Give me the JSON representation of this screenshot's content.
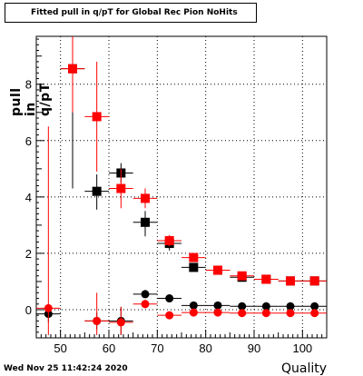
{
  "header": {
    "title": "Fitted pull in q/pT for Global Rec Pion NoHits"
  },
  "footer": {
    "timestamp": "Wed Nov 25 11:42:24 2020"
  },
  "chart_data": {
    "type": "scatter",
    "title": "Fitted pull in q/pT for Global Rec Pion NoHits",
    "xlabel": "Quality",
    "ylabel": "pull in q/pT",
    "xlim": [
      45,
      105
    ],
    "ylim": [
      -1.0,
      9.7
    ],
    "x_ticks": [
      50,
      60,
      70,
      80,
      90,
      100
    ],
    "y_ticks": [
      0,
      2,
      4,
      6,
      8
    ],
    "grid": true,
    "colors": {
      "black": "#000000",
      "red": "#ff0000"
    },
    "series": [
      {
        "marker": "square",
        "color": "#000000",
        "points": [
          {
            "x": 52.5,
            "y": 8.55,
            "ylo": 4.3,
            "yhi": 9.0
          },
          {
            "x": 57.5,
            "y": 4.2,
            "ylo": 3.55,
            "yhi": 4.8
          },
          {
            "x": 62.5,
            "y": 4.85,
            "ylo": 4.5,
            "yhi": 5.2
          },
          {
            "x": 67.5,
            "y": 3.1,
            "ylo": 2.6,
            "yhi": 3.5
          },
          {
            "x": 72.5,
            "y": 2.35,
            "ylo": 2.1,
            "yhi": 2.6
          },
          {
            "x": 77.5,
            "y": 1.5,
            "ylo": 1.35,
            "yhi": 1.65
          },
          {
            "x": 82.5,
            "y": 1.4,
            "ylo": 1.35,
            "yhi": 1.45
          },
          {
            "x": 87.5,
            "y": 1.15,
            "ylo": 1.1,
            "yhi": 1.2
          },
          {
            "x": 92.5,
            "y": 1.08,
            "ylo": 1.05,
            "yhi": 1.12
          },
          {
            "x": 97.5,
            "y": 1.02,
            "ylo": 1.0,
            "yhi": 1.05
          },
          {
            "x": 102.5,
            "y": 1.02,
            "ylo": 1.0,
            "yhi": 1.05
          }
        ]
      },
      {
        "marker": "square",
        "color": "#ff0000",
        "points": [
          {
            "x": 52.5,
            "y": 8.55,
            "ylo": 7.0,
            "yhi": 9.7
          },
          {
            "x": 57.5,
            "y": 6.85,
            "ylo": 4.9,
            "yhi": 8.8
          },
          {
            "x": 62.5,
            "y": 4.3,
            "ylo": 3.6,
            "yhi": 5.0
          },
          {
            "x": 67.5,
            "y": 3.95,
            "ylo": 3.6,
            "yhi": 4.3
          },
          {
            "x": 72.5,
            "y": 2.45,
            "ylo": 2.25,
            "yhi": 2.65
          },
          {
            "x": 77.5,
            "y": 1.85,
            "ylo": 1.75,
            "yhi": 1.95
          },
          {
            "x": 82.5,
            "y": 1.4,
            "ylo": 1.35,
            "yhi": 1.45
          },
          {
            "x": 87.5,
            "y": 1.2,
            "ylo": 1.15,
            "yhi": 1.25
          },
          {
            "x": 92.5,
            "y": 1.08,
            "ylo": 1.05,
            "yhi": 1.12
          },
          {
            "x": 97.5,
            "y": 1.02,
            "ylo": 1.0,
            "yhi": 1.05
          },
          {
            "x": 102.5,
            "y": 1.02,
            "ylo": 1.0,
            "yhi": 1.05
          }
        ]
      },
      {
        "marker": "circle",
        "color": "#000000",
        "points": [
          {
            "x": 47.5,
            "y": -0.15,
            "ylo": -0.45,
            "yhi": 0.15
          },
          {
            "x": 57.5,
            "y": -0.4,
            "ylo": -0.7,
            "yhi": -0.1
          },
          {
            "x": 62.5,
            "y": -0.4,
            "ylo": -0.9,
            "yhi": 0.1
          },
          {
            "x": 67.5,
            "y": 0.55,
            "ylo": 0.45,
            "yhi": 0.7
          },
          {
            "x": 72.5,
            "y": 0.4,
            "ylo": 0.35,
            "yhi": 0.45
          },
          {
            "x": 77.5,
            "y": 0.15,
            "ylo": 0.12,
            "yhi": 0.18
          },
          {
            "x": 82.5,
            "y": 0.15,
            "ylo": 0.12,
            "yhi": 0.18
          },
          {
            "x": 87.5,
            "y": 0.12,
            "ylo": 0.1,
            "yhi": 0.14
          },
          {
            "x": 92.5,
            "y": 0.12,
            "ylo": 0.1,
            "yhi": 0.14
          },
          {
            "x": 97.5,
            "y": 0.12,
            "ylo": 0.1,
            "yhi": 0.14
          },
          {
            "x": 102.5,
            "y": 0.12,
            "ylo": 0.1,
            "yhi": 0.14
          }
        ]
      },
      {
        "marker": "circle",
        "color": "#ff0000",
        "points": [
          {
            "x": 47.5,
            "y": 0.05,
            "ylo": -0.9,
            "yhi": 6.5
          },
          {
            "x": 57.5,
            "y": -0.4,
            "ylo": -0.9,
            "yhi": 0.6
          },
          {
            "x": 62.5,
            "y": -0.45,
            "ylo": -0.9,
            "yhi": 0.1
          },
          {
            "x": 67.5,
            "y": 0.2,
            "ylo": 0.05,
            "yhi": 0.35
          },
          {
            "x": 72.5,
            "y": -0.2,
            "ylo": -0.25,
            "yhi": -0.15
          },
          {
            "x": 77.5,
            "y": -0.1,
            "ylo": -0.13,
            "yhi": -0.07
          },
          {
            "x": 82.5,
            "y": -0.1,
            "ylo": -0.13,
            "yhi": -0.07
          },
          {
            "x": 87.5,
            "y": -0.12,
            "ylo": -0.14,
            "yhi": -0.1
          },
          {
            "x": 92.5,
            "y": -0.12,
            "ylo": -0.14,
            "yhi": -0.1
          },
          {
            "x": 97.5,
            "y": -0.12,
            "ylo": -0.14,
            "yhi": -0.1
          },
          {
            "x": 102.5,
            "y": -0.12,
            "ylo": -0.14,
            "yhi": -0.1
          }
        ]
      }
    ]
  }
}
